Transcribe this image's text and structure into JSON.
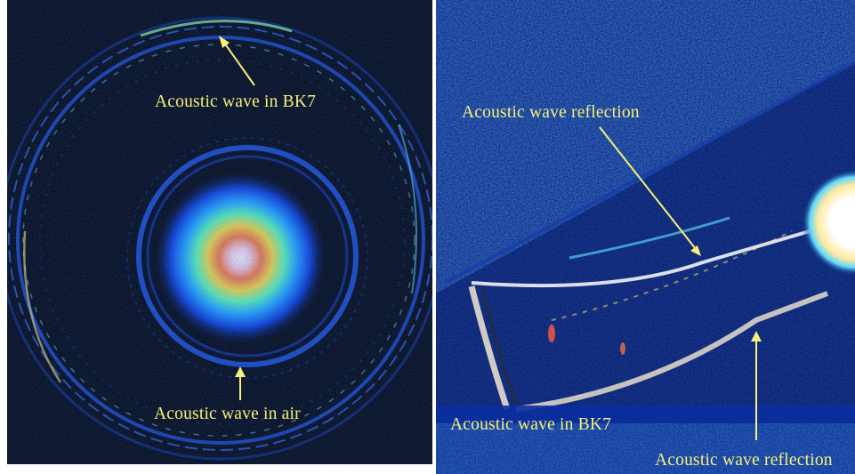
{
  "colors": {
    "annotation": "#f5f07a",
    "background_left": "#000000",
    "background_right": "#0a1f78"
  },
  "left_panel": {
    "labels": {
      "top": "Acoustic wave in BK7",
      "bottom": "Acoustic wave in air"
    }
  },
  "right_panel": {
    "labels": {
      "reflection_top": "Acoustic wave reflection",
      "bk7": "Acoustic wave in BK7",
      "reflection_bottom": "Acoustic wave reflection"
    }
  }
}
